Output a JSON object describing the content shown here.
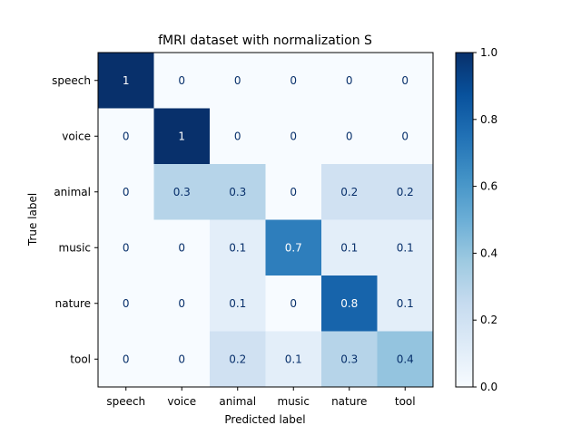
{
  "chart_data": {
    "type": "heatmap",
    "title": "fMRI dataset with normalization S",
    "xlabel": "Predicted label",
    "ylabel": "True label",
    "x_categories": [
      "speech",
      "voice",
      "animal",
      "music",
      "nature",
      "tool"
    ],
    "y_categories": [
      "speech",
      "voice",
      "animal",
      "music",
      "nature",
      "tool"
    ],
    "values": [
      [
        1,
        0,
        0,
        0,
        0,
        0
      ],
      [
        0,
        1,
        0,
        0,
        0,
        0
      ],
      [
        0,
        0.3,
        0.3,
        0,
        0.2,
        0.2
      ],
      [
        0,
        0,
        0.1,
        0.7,
        0.1,
        0.1
      ],
      [
        0,
        0,
        0.1,
        0,
        0.8,
        0.1
      ],
      [
        0,
        0,
        0.2,
        0.1,
        0.3,
        0.4
      ]
    ],
    "value_labels": [
      [
        "1",
        "0",
        "0",
        "0",
        "0",
        "0"
      ],
      [
        "0",
        "1",
        "0",
        "0",
        "0",
        "0"
      ],
      [
        "0",
        "0.3",
        "0.3",
        "0",
        "0.2",
        "0.2"
      ],
      [
        "0",
        "0",
        "0.1",
        "0.7",
        "0.1",
        "0.1"
      ],
      [
        "0",
        "0",
        "0.1",
        "0",
        "0.8",
        "0.1"
      ],
      [
        "0",
        "0",
        "0.2",
        "0.1",
        "0.3",
        "0.4"
      ]
    ],
    "colormap": "Blues",
    "colorbar": {
      "range": [
        0,
        1
      ],
      "ticks": [
        0.0,
        0.2,
        0.4,
        0.6,
        0.8,
        1.0
      ],
      "tick_labels": [
        "0.0",
        "0.2",
        "0.4",
        "0.6",
        "0.8",
        "1.0"
      ]
    },
    "grid": false
  }
}
